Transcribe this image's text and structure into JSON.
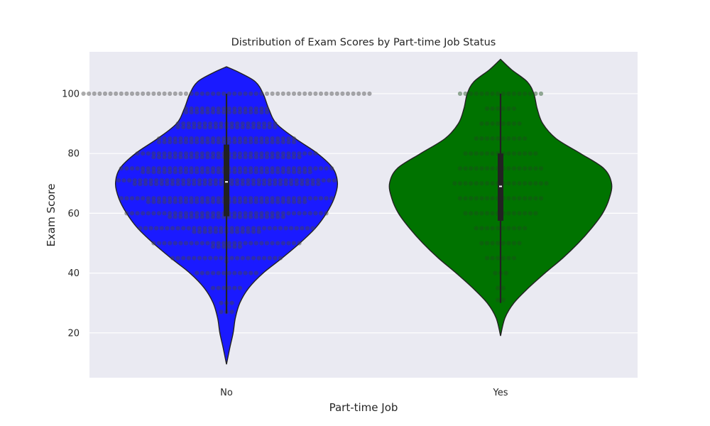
{
  "chart_data": {
    "type": "violin",
    "title": "Distribution of Exam Scores by Part-time Job Status",
    "xlabel": "Part-time Job",
    "ylabel": "Exam Score",
    "ylim": [
      5,
      114
    ],
    "yticks": [
      20,
      40,
      60,
      80,
      100
    ],
    "grid": true,
    "legend": "none",
    "background": "#eaeaf2",
    "categories": [
      "No",
      "Yes"
    ],
    "series": [
      {
        "category": "No",
        "color": "#1a1aff",
        "swarm_color": "#444444",
        "support": [
          9.5,
          109
        ],
        "min": 26.5,
        "q1": 59,
        "median": 70.5,
        "q3": 83,
        "max": 100,
        "density_profile": [
          [
            9.5,
            0.0
          ],
          [
            15,
            0.03
          ],
          [
            20,
            0.06
          ],
          [
            25,
            0.08
          ],
          [
            30,
            0.12
          ],
          [
            35,
            0.2
          ],
          [
            40,
            0.33
          ],
          [
            45,
            0.5
          ],
          [
            50,
            0.66
          ],
          [
            55,
            0.8
          ],
          [
            60,
            0.9
          ],
          [
            65,
            0.97
          ],
          [
            70,
            1.0
          ],
          [
            75,
            0.96
          ],
          [
            80,
            0.82
          ],
          [
            85,
            0.62
          ],
          [
            90,
            0.45
          ],
          [
            95,
            0.38
          ],
          [
            100,
            0.33
          ],
          [
            104,
            0.26
          ],
          [
            107,
            0.12
          ],
          [
            109,
            0.0
          ]
        ],
        "swarm_points": [
          {
            "score": 100,
            "count": 54
          },
          {
            "score": 95,
            "count": 32
          },
          {
            "score": 90,
            "count": 38
          },
          {
            "score": 85,
            "count": 52
          },
          {
            "score": 80,
            "count": 62
          },
          {
            "score": 75,
            "count": 72
          },
          {
            "score": 71,
            "count": 76
          },
          {
            "score": 65,
            "count": 70
          },
          {
            "score": 60,
            "count": 60
          },
          {
            "score": 55,
            "count": 46
          },
          {
            "score": 50,
            "count": 34
          },
          {
            "score": 45,
            "count": 22
          },
          {
            "score": 40,
            "count": 12
          },
          {
            "score": 35,
            "count": 6
          },
          {
            "score": 30,
            "count": 3
          },
          {
            "score": 27,
            "count": 3
          }
        ]
      },
      {
        "category": "Yes",
        "color": "#007300",
        "swarm_color": "#1a4d1a",
        "support": [
          19,
          111.5
        ],
        "min": 30,
        "q1": 57.5,
        "median": 69,
        "q3": 80,
        "max": 100,
        "density_profile": [
          [
            19,
            0.0
          ],
          [
            25,
            0.04
          ],
          [
            30,
            0.12
          ],
          [
            35,
            0.25
          ],
          [
            40,
            0.4
          ],
          [
            45,
            0.56
          ],
          [
            50,
            0.7
          ],
          [
            55,
            0.82
          ],
          [
            60,
            0.92
          ],
          [
            65,
            0.98
          ],
          [
            70,
            1.0
          ],
          [
            75,
            0.93
          ],
          [
            80,
            0.72
          ],
          [
            85,
            0.5
          ],
          [
            90,
            0.38
          ],
          [
            95,
            0.33
          ],
          [
            100,
            0.3
          ],
          [
            104,
            0.24
          ],
          [
            108,
            0.1
          ],
          [
            111.5,
            0.0
          ]
        ],
        "swarm_points": [
          {
            "score": 100,
            "count": 16
          },
          {
            "score": 95,
            "count": 6
          },
          {
            "score": 90,
            "count": 8
          },
          {
            "score": 85,
            "count": 10
          },
          {
            "score": 80,
            "count": 14
          },
          {
            "score": 75,
            "count": 16
          },
          {
            "score": 70,
            "count": 18
          },
          {
            "score": 65,
            "count": 16
          },
          {
            "score": 60,
            "count": 14
          },
          {
            "score": 55,
            "count": 10
          },
          {
            "score": 50,
            "count": 8
          },
          {
            "score": 45,
            "count": 6
          },
          {
            "score": 40,
            "count": 3
          },
          {
            "score": 35,
            "count": 2
          },
          {
            "score": 31,
            "count": 2
          }
        ]
      }
    ]
  }
}
